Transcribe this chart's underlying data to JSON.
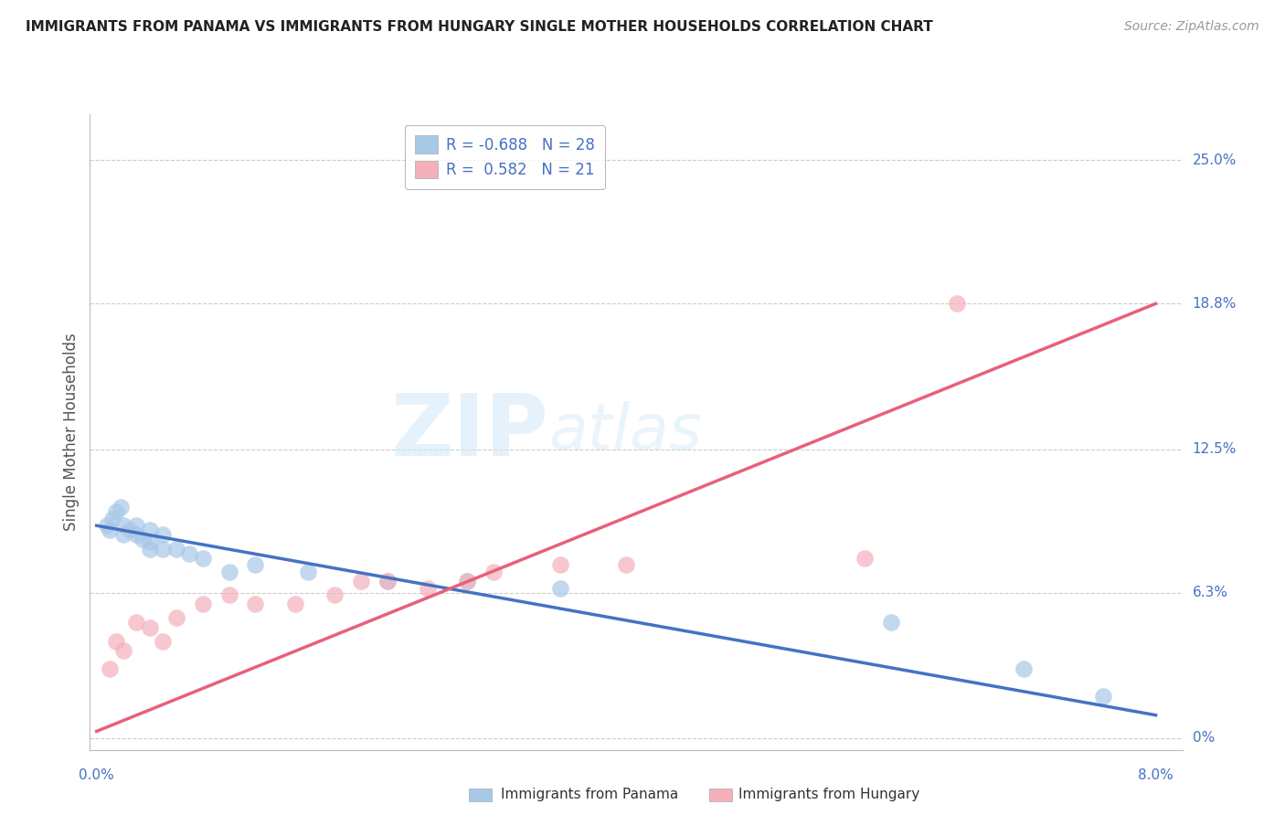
{
  "title": "IMMIGRANTS FROM PANAMA VS IMMIGRANTS FROM HUNGARY SINGLE MOTHER HOUSEHOLDS CORRELATION CHART",
  "source": "Source: ZipAtlas.com",
  "ylabel": "Single Mother Households",
  "ytick_vals": [
    0.0,
    0.063,
    0.125,
    0.188,
    0.25
  ],
  "ytick_labels": [
    "0%",
    "6.3%",
    "12.5%",
    "18.8%",
    "25.0%"
  ],
  "xlim_min": -0.0005,
  "xlim_max": 0.082,
  "ylim_min": -0.005,
  "ylim_max": 0.27,
  "panama_color": "#A8C8E8",
  "hungary_color": "#F5B0BB",
  "panama_line_color": "#4472C4",
  "hungary_line_color": "#E8607A",
  "background_color": "#FFFFFF",
  "grid_color": "#CCCCCC",
  "panama_R": -0.688,
  "panama_N": 28,
  "hungary_R": 0.582,
  "hungary_N": 21,
  "panama_x": [
    0.0008,
    0.001,
    0.0012,
    0.0015,
    0.0018,
    0.002,
    0.002,
    0.0025,
    0.003,
    0.003,
    0.0035,
    0.004,
    0.004,
    0.004,
    0.005,
    0.005,
    0.006,
    0.007,
    0.008,
    0.01,
    0.012,
    0.016,
    0.022,
    0.028,
    0.035,
    0.06,
    0.07,
    0.076
  ],
  "panama_y": [
    0.092,
    0.09,
    0.095,
    0.098,
    0.1,
    0.092,
    0.088,
    0.09,
    0.088,
    0.092,
    0.086,
    0.085,
    0.082,
    0.09,
    0.088,
    0.082,
    0.082,
    0.08,
    0.078,
    0.072,
    0.075,
    0.072,
    0.068,
    0.068,
    0.065,
    0.05,
    0.03,
    0.018
  ],
  "hungary_x": [
    0.001,
    0.0015,
    0.002,
    0.003,
    0.004,
    0.005,
    0.006,
    0.008,
    0.01,
    0.012,
    0.015,
    0.018,
    0.02,
    0.022,
    0.025,
    0.028,
    0.03,
    0.035,
    0.04,
    0.058,
    0.065
  ],
  "hungary_y": [
    0.03,
    0.042,
    0.038,
    0.05,
    0.048,
    0.042,
    0.052,
    0.058,
    0.062,
    0.058,
    0.058,
    0.062,
    0.068,
    0.068,
    0.065,
    0.068,
    0.072,
    0.075,
    0.075,
    0.078,
    0.188
  ],
  "panama_line_x0": 0.0,
  "panama_line_y0": 0.092,
  "panama_line_x1": 0.08,
  "panama_line_y1": 0.01,
  "hungary_line_x0": 0.0,
  "hungary_line_y0": 0.003,
  "hungary_line_x1": 0.08,
  "hungary_line_y1": 0.188
}
